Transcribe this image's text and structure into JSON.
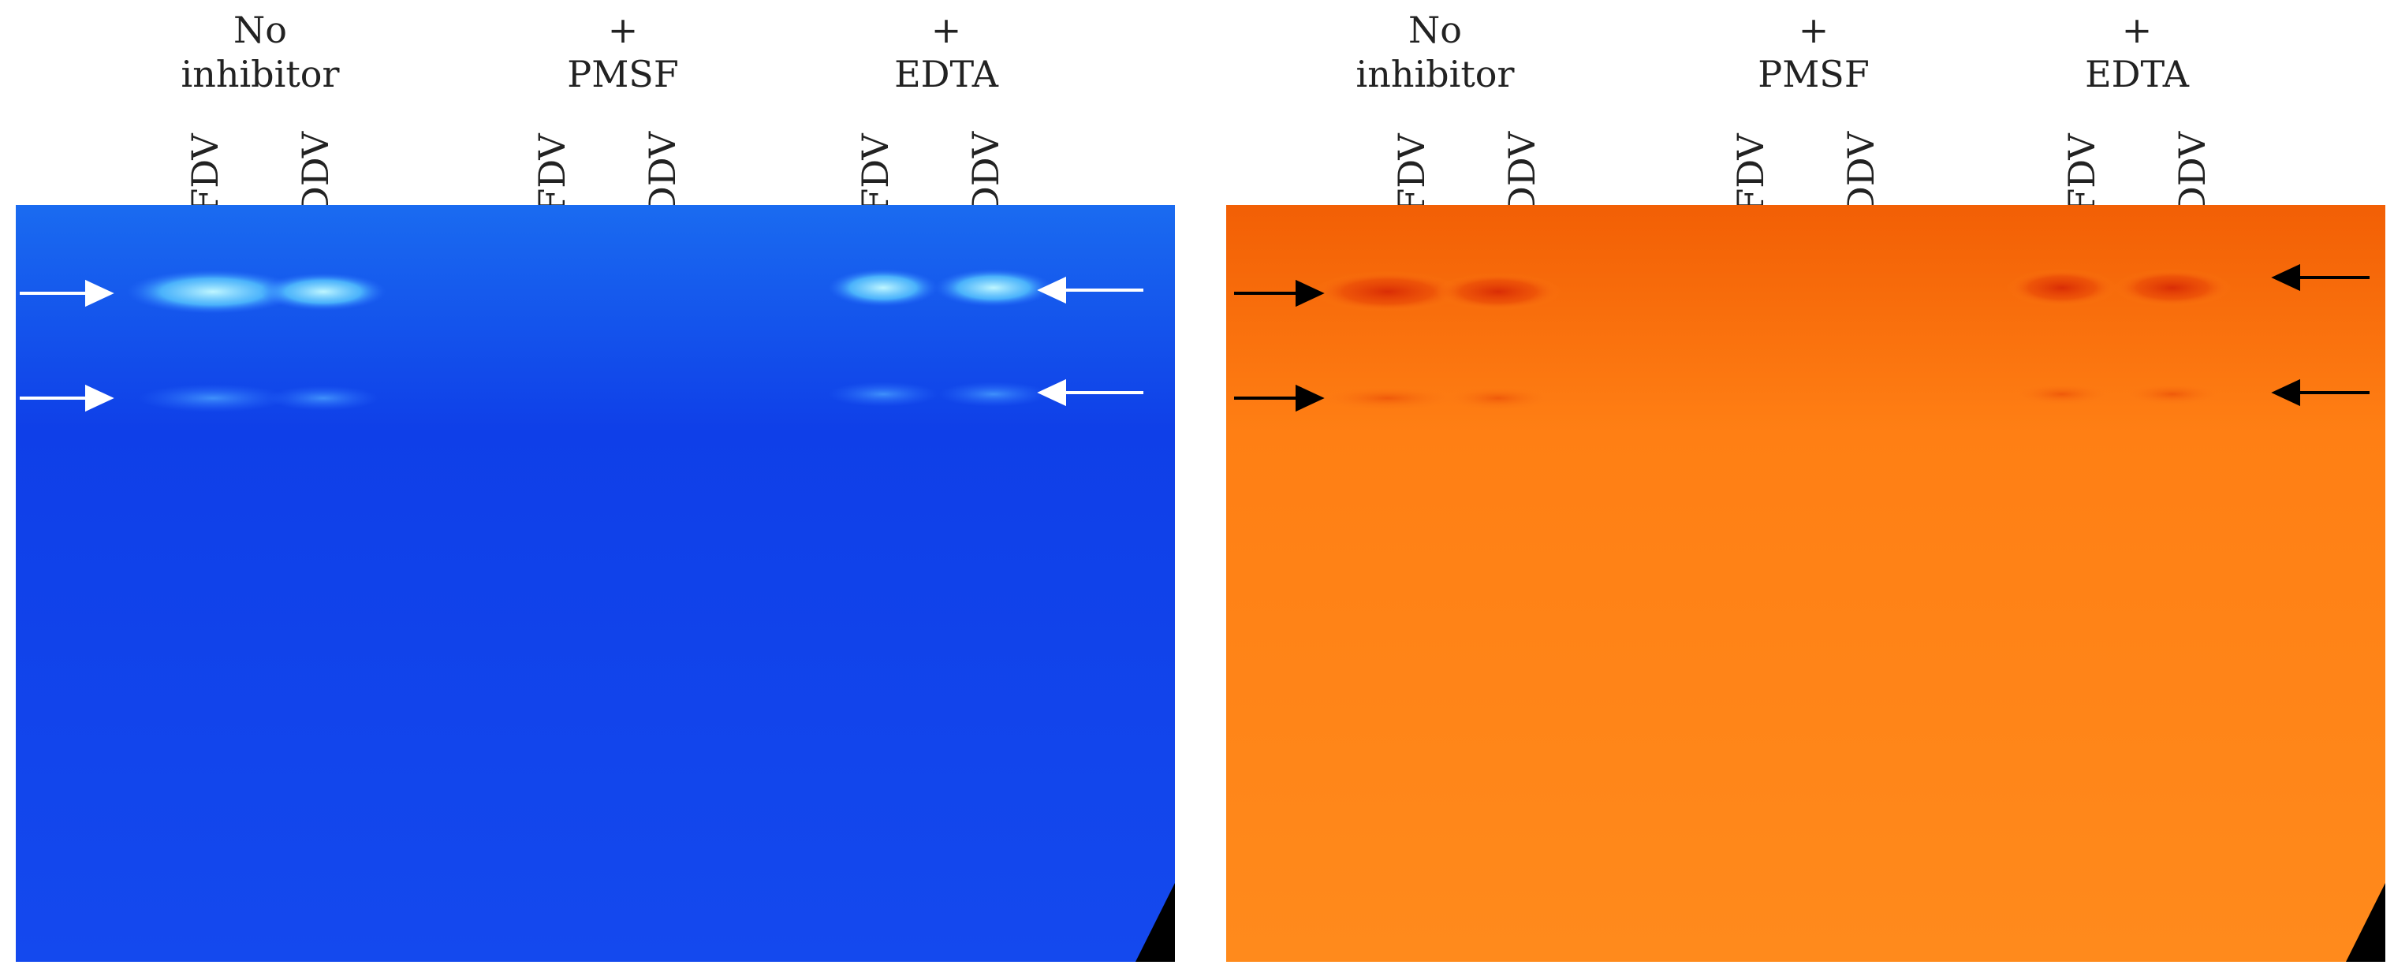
{
  "figure": {
    "left_panel": {
      "stain_color": "#0f39e8",
      "arrow_color": "#ffffff",
      "groups": [
        {
          "line1": "No",
          "line2": "inhibitor"
        },
        {
          "line1": "+",
          "line2": "PMSF"
        },
        {
          "line1": "+",
          "line2": "EDTA"
        }
      ],
      "lanes": [
        "FDV",
        "DDV",
        "FDV",
        "DDV",
        "FDV",
        "DDV"
      ]
    },
    "right_panel": {
      "stain_color": "#fd7b12",
      "arrow_color": "#000000",
      "groups": [
        {
          "line1": "No",
          "line2": "inhibitor"
        },
        {
          "line1": "+",
          "line2": "PMSF"
        },
        {
          "line1": "+",
          "line2": "EDTA"
        }
      ],
      "lanes": [
        "FDV",
        "DDV",
        "FDV",
        "DDV",
        "FDV",
        "DDV"
      ]
    }
  }
}
